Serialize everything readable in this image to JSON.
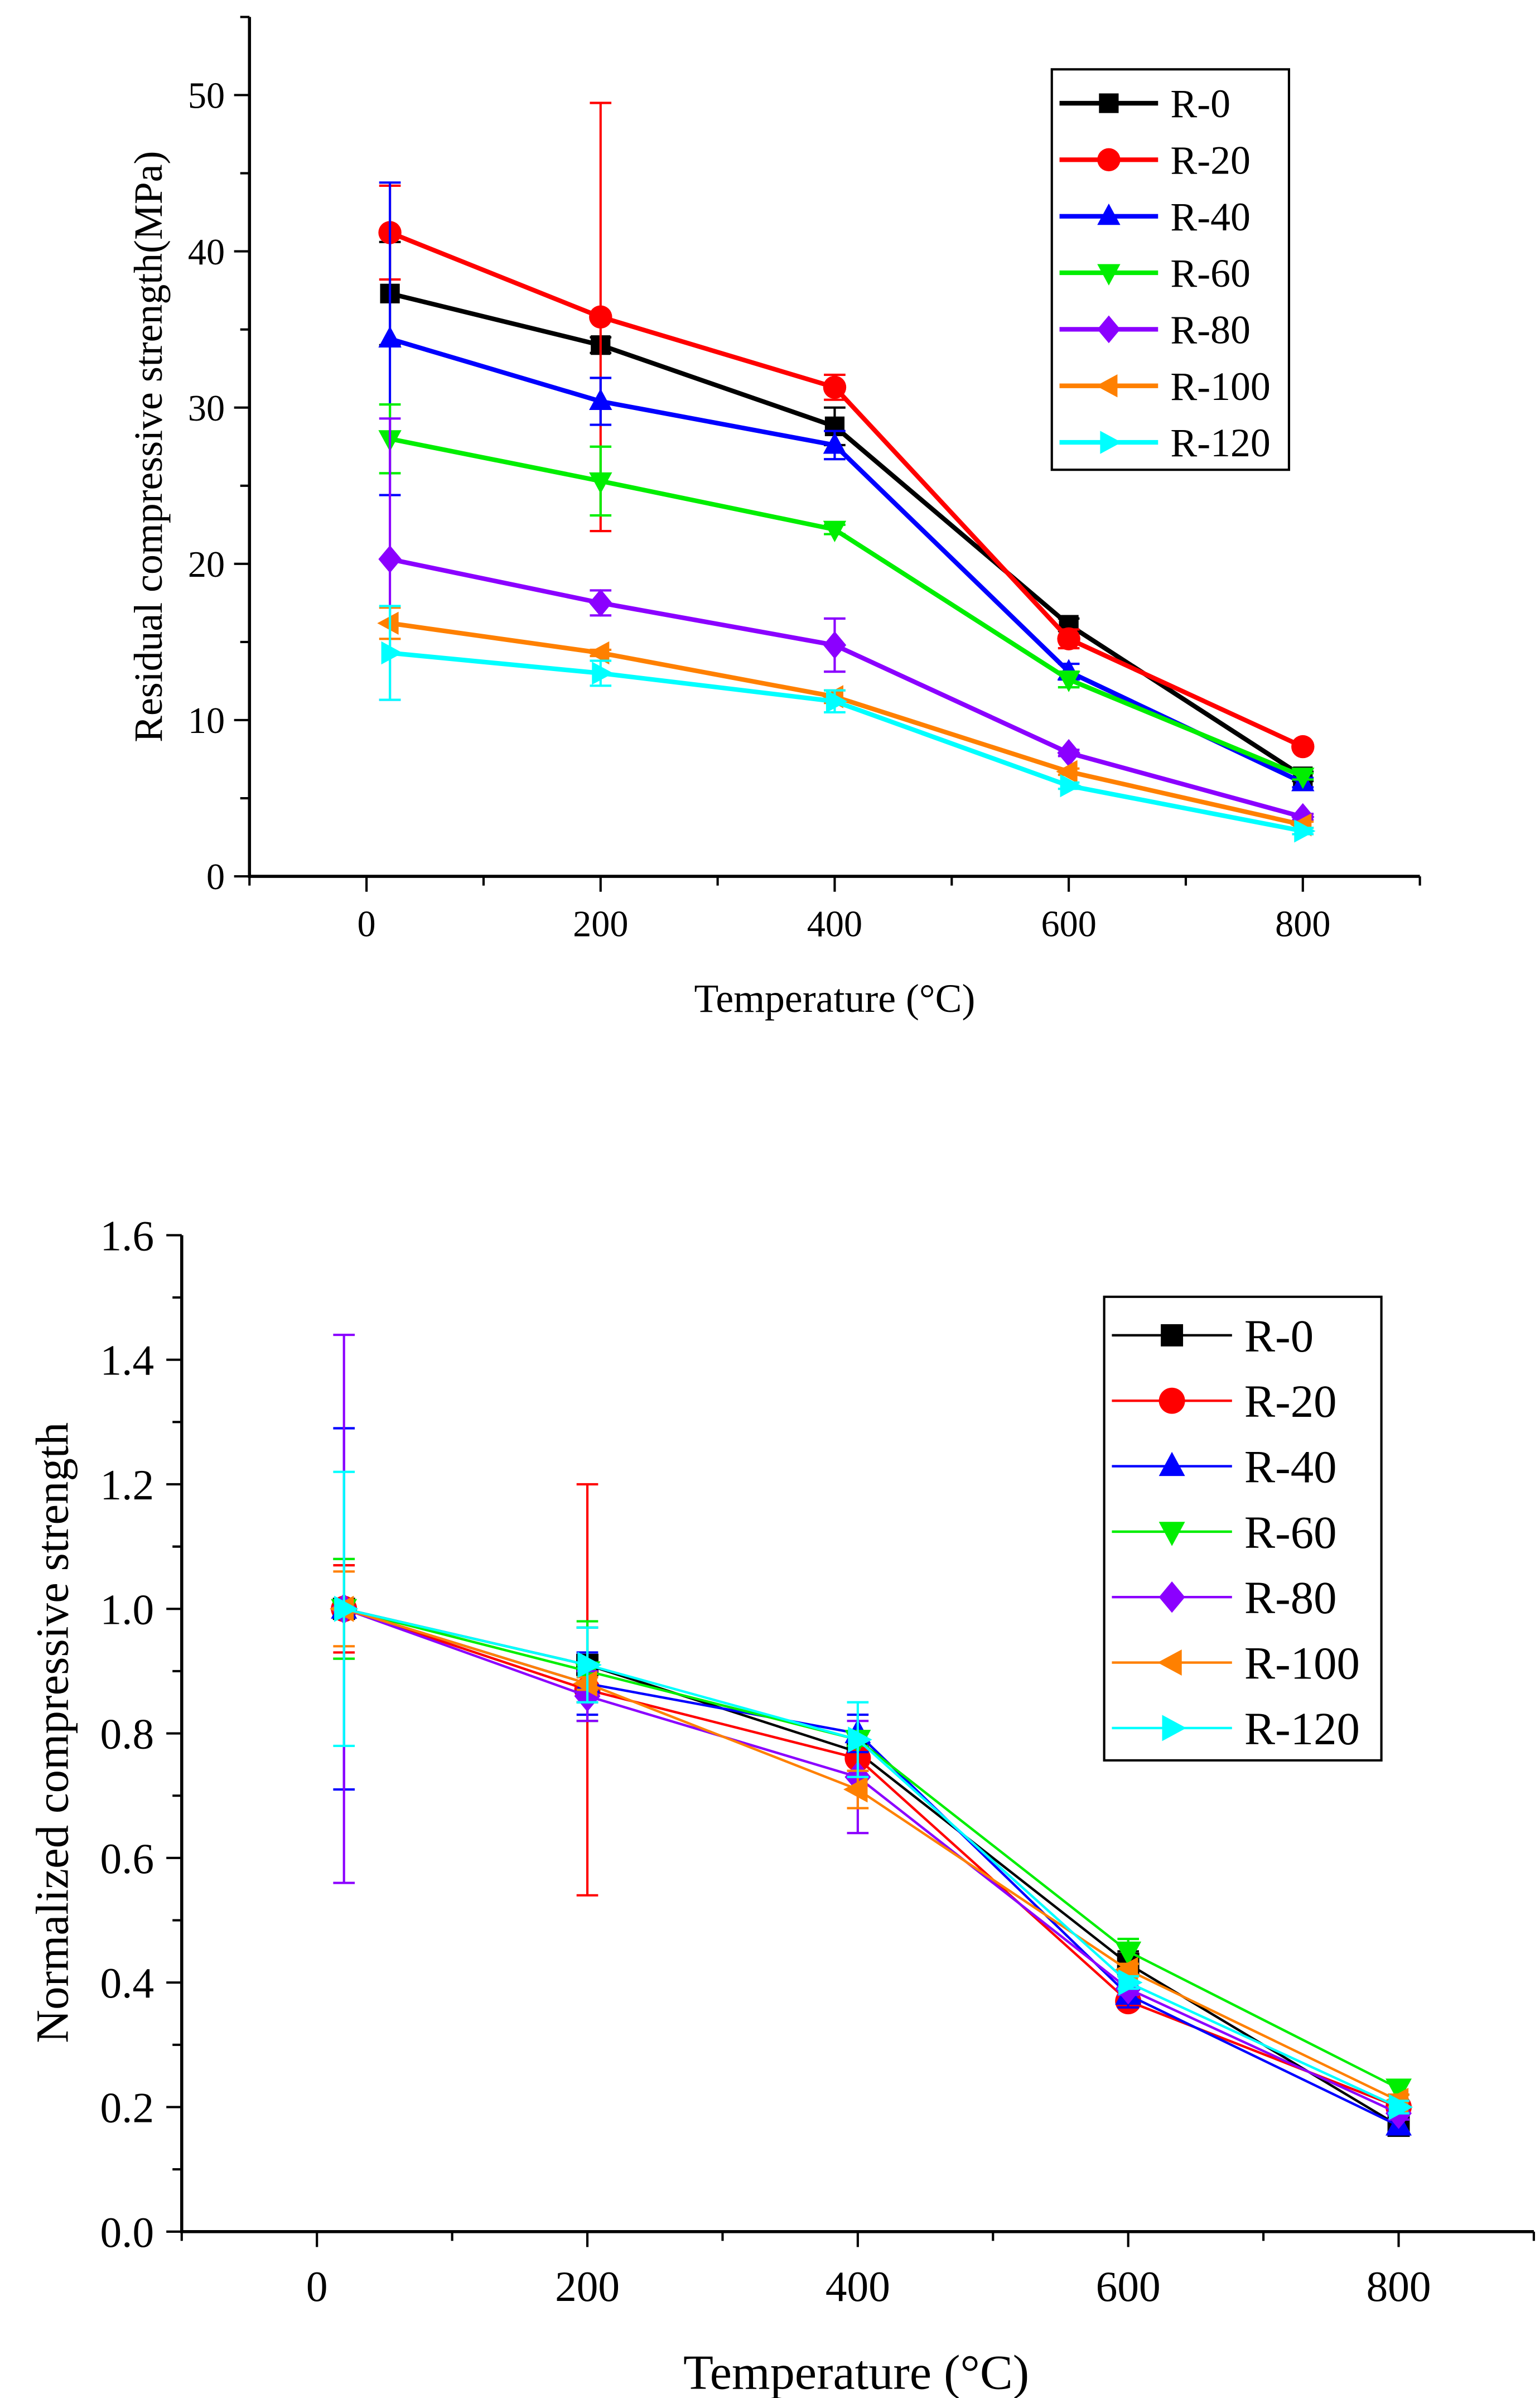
{
  "chart_data": [
    {
      "type": "line",
      "title": "",
      "xlabel": "Temperature (°C)",
      "ylabel": "Residual compressive strength(MPa)",
      "xlim": [
        -100,
        900
      ],
      "ylim": [
        0,
        55
      ],
      "xticks": [
        0,
        200,
        400,
        600,
        800
      ],
      "xtick_labels": [
        "0",
        "200",
        "400",
        "600",
        "800"
      ],
      "yticks": [
        0,
        10,
        20,
        30,
        40,
        50
      ],
      "ytick_labels": [
        "0",
        "10",
        "20",
        "30",
        "40",
        "50"
      ],
      "x_minor_step": 100,
      "y_minor_step": 5,
      "grid": false,
      "legend_position": "top-right",
      "x": [
        20,
        200,
        400,
        600,
        800
      ],
      "series": [
        {
          "name": "R-0",
          "color": "#000000",
          "marker": "square",
          "values": [
            37.3,
            34.0,
            28.8,
            16.1,
            6.4
          ],
          "errors": [
            3.3,
            0.5,
            1.2,
            0.4,
            0.3
          ]
        },
        {
          "name": "R-20",
          "color": "#ff0000",
          "marker": "circle",
          "values": [
            41.2,
            35.8,
            31.3,
            15.2,
            8.3
          ],
          "errors": [
            3.0,
            13.7,
            0.8,
            0.6,
            0.2
          ]
        },
        {
          "name": "R-40",
          "color": "#0000ff",
          "marker": "triangle-up",
          "values": [
            34.4,
            30.4,
            27.6,
            13.1,
            6.0
          ],
          "errors": [
            10.0,
            1.5,
            0.9,
            0.5,
            0.3
          ]
        },
        {
          "name": "R-60",
          "color": "#00ee00",
          "marker": "triangle-down",
          "values": [
            28.0,
            25.3,
            22.2,
            12.6,
            6.4
          ],
          "errors": [
            2.2,
            2.2,
            0.3,
            0.5,
            0.2
          ]
        },
        {
          "name": "R-80",
          "color": "#8b00ff",
          "marker": "diamond",
          "values": [
            20.3,
            17.5,
            14.8,
            7.9,
            3.8
          ],
          "errors": [
            9.0,
            0.8,
            1.7,
            0.2,
            0.2
          ]
        },
        {
          "name": "R-100",
          "color": "#ff8000",
          "marker": "triangle-left",
          "values": [
            16.2,
            14.3,
            11.5,
            6.7,
            3.3
          ],
          "errors": [
            1.0,
            0.2,
            0.4,
            0.2,
            0.2
          ]
        },
        {
          "name": "R-120",
          "color": "#00ffff",
          "marker": "triangle-right",
          "values": [
            14.3,
            13.0,
            11.2,
            5.8,
            2.9
          ],
          "errors": [
            3.0,
            0.8,
            0.7,
            0.2,
            0.2
          ]
        }
      ]
    },
    {
      "type": "line",
      "title": "",
      "xlabel": "Temperature (°C)",
      "ylabel": "Normalized compressive strength",
      "xlim": [
        -100,
        900
      ],
      "ylim": [
        0,
        1.6
      ],
      "xticks": [
        0,
        200,
        400,
        600,
        800
      ],
      "xtick_labels": [
        "0",
        "200",
        "400",
        "600",
        "800"
      ],
      "yticks": [
        0,
        0.2,
        0.4,
        0.6,
        0.8,
        1.0,
        1.2,
        1.4,
        1.6
      ],
      "ytick_labels": [
        "0.0",
        "0.2",
        "0.4",
        "0.6",
        "0.8",
        "1.0",
        "1.2",
        "1.4",
        "1.6"
      ],
      "x_minor_step": 100,
      "y_minor_step": 0.1,
      "grid": false,
      "legend_position": "top-right",
      "x": [
        20,
        200,
        400,
        600,
        800
      ],
      "series": [
        {
          "name": "R-0",
          "color": "#000000",
          "marker": "square",
          "values": [
            1.0,
            0.91,
            0.77,
            0.43,
            0.17
          ],
          "errors": [
            0.08,
            0.06,
            0.03,
            0.02,
            0.01
          ]
        },
        {
          "name": "R-20",
          "color": "#ff0000",
          "marker": "circle",
          "values": [
            1.0,
            0.87,
            0.76,
            0.37,
            0.2
          ],
          "errors": [
            0.07,
            0.33,
            0.02,
            0.01,
            0.01
          ]
        },
        {
          "name": "R-40",
          "color": "#0000ff",
          "marker": "triangle-up",
          "values": [
            1.0,
            0.88,
            0.8,
            0.38,
            0.17
          ],
          "errors": [
            0.29,
            0.05,
            0.03,
            0.02,
            0.01
          ]
        },
        {
          "name": "R-60",
          "color": "#00ee00",
          "marker": "triangle-down",
          "values": [
            1.0,
            0.9,
            0.79,
            0.45,
            0.23
          ],
          "errors": [
            0.08,
            0.08,
            0.01,
            0.02,
            0.01
          ]
        },
        {
          "name": "R-80",
          "color": "#8b00ff",
          "marker": "diamond",
          "values": [
            1.0,
            0.86,
            0.73,
            0.39,
            0.19
          ],
          "errors": [
            0.44,
            0.04,
            0.09,
            0.01,
            0.01
          ]
        },
        {
          "name": "R-100",
          "color": "#ff8000",
          "marker": "triangle-left",
          "values": [
            1.0,
            0.88,
            0.71,
            0.42,
            0.21
          ],
          "errors": [
            0.06,
            0.01,
            0.03,
            0.01,
            0.01
          ]
        },
        {
          "name": "R-120",
          "color": "#00ffff",
          "marker": "triangle-right",
          "values": [
            1.0,
            0.91,
            0.79,
            0.4,
            0.2
          ],
          "errors": [
            0.22,
            0.06,
            0.06,
            0.01,
            0.01
          ]
        }
      ]
    }
  ]
}
